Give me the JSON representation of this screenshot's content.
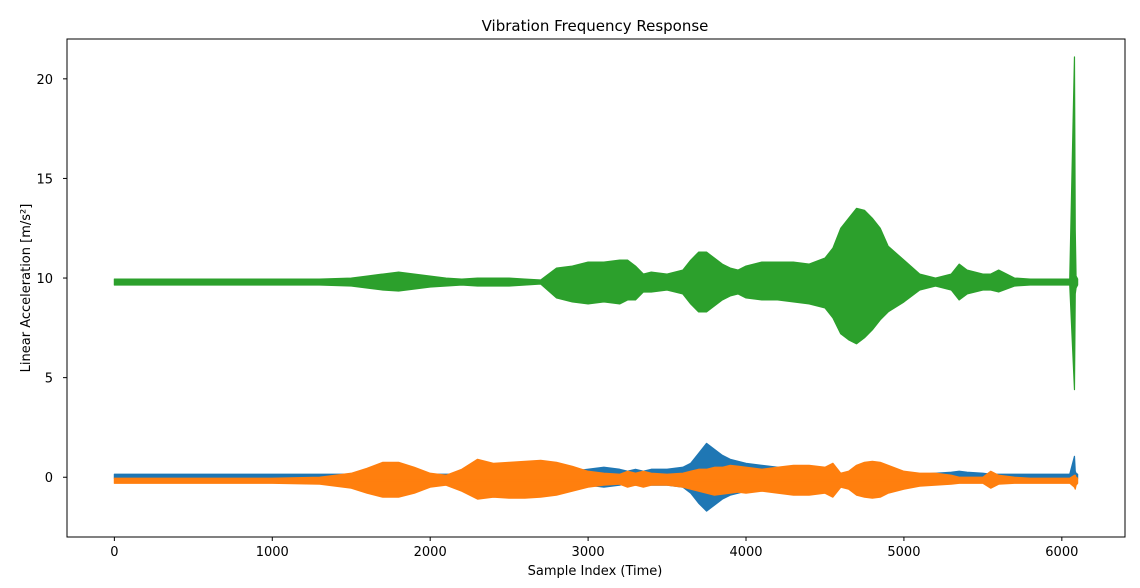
{
  "chart_data": {
    "type": "area",
    "title": "Vibration Frequency Response",
    "xlabel": "Sample Index (Time)",
    "ylabel": "Linear Acceleration [m/s²]",
    "xlim": [
      -300,
      6400
    ],
    "ylim": [
      -3,
      22
    ],
    "xticks": [
      0,
      1000,
      2000,
      3000,
      4000,
      5000,
      6000
    ],
    "yticks": [
      0,
      5,
      10,
      15,
      20
    ],
    "grid": false,
    "legend": "none",
    "x": [
      0,
      500,
      1000,
      1300,
      1500,
      1600,
      1700,
      1800,
      1900,
      2000,
      2100,
      2200,
      2300,
      2400,
      2500,
      2600,
      2700,
      2800,
      2900,
      3000,
      3100,
      3200,
      3250,
      3300,
      3350,
      3400,
      3500,
      3600,
      3650,
      3700,
      3750,
      3800,
      3850,
      3900,
      3950,
      4000,
      4100,
      4200,
      4300,
      4400,
      4500,
      4550,
      4600,
      4650,
      4700,
      4750,
      4800,
      4850,
      4900,
      5000,
      5100,
      5200,
      5300,
      5350,
      5400,
      5500,
      5550,
      5600,
      5700,
      5800,
      5900,
      6000,
      6050,
      6080,
      6085,
      6090,
      6100
    ],
    "series": [
      {
        "color": "#2ca02c",
        "center": 9.8,
        "max": [
          9.95,
          9.95,
          9.95,
          9.95,
          10.0,
          10.1,
          10.2,
          10.3,
          10.2,
          10.1,
          10.0,
          9.95,
          10.0,
          10.0,
          10.0,
          9.95,
          9.9,
          10.5,
          10.6,
          10.8,
          10.8,
          10.9,
          10.9,
          10.6,
          10.2,
          10.3,
          10.2,
          10.4,
          10.9,
          11.3,
          11.3,
          11.0,
          10.7,
          10.5,
          10.4,
          10.6,
          10.8,
          10.8,
          10.8,
          10.7,
          11.0,
          11.5,
          12.5,
          13.0,
          13.5,
          13.4,
          13.0,
          12.5,
          11.6,
          10.9,
          10.2,
          10.0,
          10.2,
          10.7,
          10.4,
          10.2,
          10.2,
          10.4,
          10.0,
          9.95,
          9.95,
          9.95,
          9.95,
          21.1,
          12.4,
          10.1,
          9.95
        ],
        "min": [
          9.65,
          9.65,
          9.65,
          9.65,
          9.6,
          9.5,
          9.4,
          9.35,
          9.45,
          9.55,
          9.6,
          9.65,
          9.6,
          9.6,
          9.6,
          9.65,
          9.7,
          9.0,
          8.8,
          8.7,
          8.8,
          8.7,
          8.9,
          8.9,
          9.3,
          9.3,
          9.4,
          9.2,
          8.7,
          8.3,
          8.3,
          8.6,
          8.9,
          9.1,
          9.2,
          9.0,
          8.9,
          8.9,
          8.8,
          8.7,
          8.5,
          8.0,
          7.2,
          6.9,
          6.7,
          7.0,
          7.4,
          7.9,
          8.3,
          8.8,
          9.4,
          9.6,
          9.4,
          8.9,
          9.2,
          9.4,
          9.4,
          9.3,
          9.6,
          9.65,
          9.65,
          9.65,
          9.65,
          4.4,
          9.2,
          9.5,
          9.65
        ]
      },
      {
        "color": "#1f77b4",
        "center": 0.05,
        "max": [
          0.15,
          0.15,
          0.15,
          0.15,
          0.15,
          0.15,
          0.15,
          0.15,
          0.15,
          0.15,
          0.15,
          0.15,
          0.15,
          0.15,
          0.15,
          0.15,
          0.15,
          0.2,
          0.3,
          0.4,
          0.5,
          0.4,
          0.3,
          0.4,
          0.3,
          0.4,
          0.4,
          0.5,
          0.7,
          1.2,
          1.7,
          1.4,
          1.1,
          0.9,
          0.8,
          0.7,
          0.6,
          0.5,
          0.5,
          0.4,
          0.3,
          0.3,
          0.2,
          0.2,
          0.2,
          0.15,
          0.15,
          0.15,
          0.15,
          0.15,
          0.15,
          0.2,
          0.25,
          0.3,
          0.25,
          0.2,
          0.15,
          0.15,
          0.15,
          0.15,
          0.15,
          0.15,
          0.15,
          1.05,
          0.3,
          0.2,
          0.15
        ],
        "min": [
          -0.05,
          -0.05,
          -0.05,
          -0.05,
          -0.05,
          -0.05,
          -0.05,
          -0.05,
          -0.05,
          -0.05,
          -0.05,
          -0.05,
          -0.05,
          -0.05,
          -0.05,
          -0.05,
          -0.05,
          -0.2,
          -0.3,
          -0.4,
          -0.5,
          -0.4,
          -0.3,
          -0.4,
          -0.3,
          -0.4,
          -0.4,
          -0.5,
          -0.8,
          -1.3,
          -1.7,
          -1.4,
          -1.1,
          -0.9,
          -0.8,
          -0.7,
          -0.6,
          -0.5,
          -0.5,
          -0.4,
          -0.3,
          -0.3,
          -0.2,
          -0.2,
          -0.2,
          -0.15,
          -0.15,
          -0.15,
          -0.15,
          -0.15,
          -0.15,
          -0.2,
          -0.2,
          -0.2,
          -0.2,
          -0.15,
          -0.1,
          -0.1,
          -0.05,
          -0.05,
          -0.05,
          -0.05,
          -0.05,
          -0.5,
          -0.3,
          -0.2,
          -0.05
        ]
      },
      {
        "color": "#ff7f0e",
        "center": -0.15,
        "max": [
          -0.05,
          -0.05,
          -0.05,
          0.0,
          0.2,
          0.45,
          0.75,
          0.75,
          0.5,
          0.2,
          0.1,
          0.4,
          0.9,
          0.7,
          0.75,
          0.8,
          0.85,
          0.75,
          0.55,
          0.3,
          0.2,
          0.15,
          0.3,
          0.2,
          0.3,
          0.2,
          0.15,
          0.2,
          0.3,
          0.4,
          0.4,
          0.5,
          0.5,
          0.6,
          0.55,
          0.5,
          0.4,
          0.5,
          0.6,
          0.6,
          0.5,
          0.7,
          0.2,
          0.3,
          0.6,
          0.75,
          0.8,
          0.75,
          0.6,
          0.3,
          0.2,
          0.2,
          0.1,
          0.0,
          0.0,
          0.0,
          0.3,
          0.1,
          0.0,
          -0.05,
          -0.05,
          -0.05,
          -0.05,
          0.1,
          0.1,
          0.0,
          -0.05
        ],
        "min": [
          -0.3,
          -0.3,
          -0.3,
          -0.35,
          -0.55,
          -0.8,
          -1.0,
          -1.0,
          -0.8,
          -0.5,
          -0.4,
          -0.7,
          -1.1,
          -1.0,
          -1.05,
          -1.05,
          -1.0,
          -0.9,
          -0.7,
          -0.5,
          -0.4,
          -0.35,
          -0.5,
          -0.4,
          -0.5,
          -0.4,
          -0.4,
          -0.5,
          -0.6,
          -0.7,
          -0.8,
          -0.9,
          -0.85,
          -0.8,
          -0.75,
          -0.8,
          -0.7,
          -0.8,
          -0.9,
          -0.9,
          -0.8,
          -1.0,
          -0.5,
          -0.6,
          -0.9,
          -1.0,
          -1.05,
          -1.0,
          -0.8,
          -0.6,
          -0.45,
          -0.4,
          -0.35,
          -0.3,
          -0.3,
          -0.3,
          -0.55,
          -0.35,
          -0.3,
          -0.3,
          -0.3,
          -0.3,
          -0.3,
          -0.5,
          -0.6,
          -0.4,
          -0.3
        ]
      }
    ]
  }
}
